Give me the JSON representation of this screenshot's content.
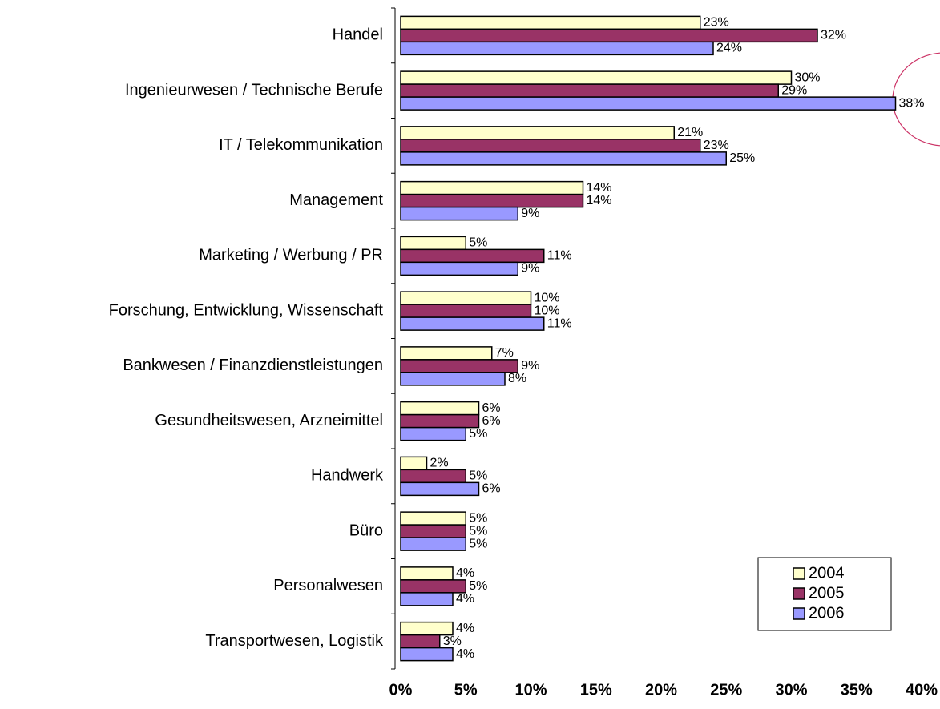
{
  "chart_data": {
    "type": "bar",
    "orientation": "horizontal",
    "categories": [
      "Handel",
      "Ingenieurwesen / Technische Berufe",
      "IT / Telekommunikation",
      "Management",
      "Marketing / Werbung / PR",
      "Forschung, Entwicklung, Wissenschaft",
      "Bankwesen / Finanzdienstleistungen",
      "Gesundheitswesen, Arzneimittel",
      "Handwerk",
      "Büro",
      "Personalwesen",
      "Transportwesen, Logistik"
    ],
    "series": [
      {
        "name": "2004",
        "color": "#ffffcc",
        "values": [
          23,
          30,
          21,
          14,
          5,
          10,
          7,
          6,
          2,
          5,
          4,
          4
        ],
        "value_labels": [
          "23%",
          "30%",
          "21%",
          "14%",
          "5%",
          "10%",
          "7%",
          "6%",
          "2%",
          "5%",
          "4%",
          "4%"
        ]
      },
      {
        "name": "2005",
        "color": "#993366",
        "values": [
          32,
          29,
          23,
          14,
          11,
          10,
          9,
          6,
          5,
          5,
          5,
          3
        ],
        "value_labels": [
          "32%",
          "29%",
          "23%",
          "14%",
          "11%",
          "10%",
          "9%",
          "6%",
          "5%",
          "5%",
          "5%",
          "3%"
        ]
      },
      {
        "name": "2006",
        "color": "#9999ff",
        "values": [
          24,
          38,
          25,
          9,
          9,
          11,
          8,
          5,
          6,
          5,
          4,
          4
        ],
        "value_labels": [
          "24%",
          "38%",
          "25%",
          "9%",
          "9%",
          "11%",
          "8%",
          "5%",
          "6%",
          "5%",
          "4%",
          "4%"
        ]
      }
    ],
    "xlim": [
      0,
      40
    ],
    "xticks": [
      {
        "value": 0,
        "label": "0%"
      },
      {
        "value": 5,
        "label": "5%"
      },
      {
        "value": 10,
        "label": "10%"
      },
      {
        "value": 15,
        "label": "15%"
      },
      {
        "value": 20,
        "label": "20%"
      },
      {
        "value": 25,
        "label": "25%"
      },
      {
        "value": 30,
        "label": "30%"
      },
      {
        "value": 35,
        "label": "35%"
      },
      {
        "value": 40,
        "label": "40%"
      }
    ],
    "legend": "lower right"
  }
}
